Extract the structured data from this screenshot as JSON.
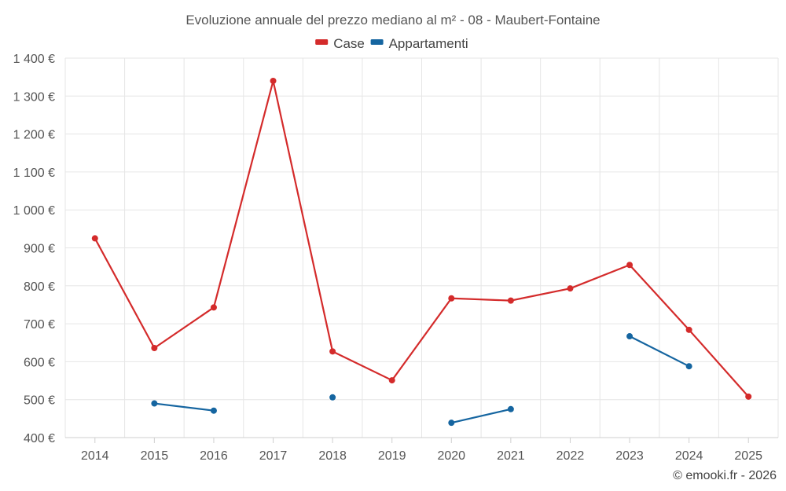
{
  "chart_data": {
    "type": "line",
    "title": "Evoluzione annuale del prezzo mediano al m² - 08 - Maubert-Fontaine",
    "categories": [
      "2014",
      "2015",
      "2016",
      "2017",
      "2018",
      "2019",
      "2020",
      "2021",
      "2022",
      "2023",
      "2024",
      "2025"
    ],
    "series": [
      {
        "name": "Case",
        "color": "#d42b2b",
        "values": [
          925,
          636,
          743,
          1340,
          627,
          551,
          767,
          761,
          793,
          855,
          684,
          508
        ]
      },
      {
        "name": "Appartamenti",
        "color": "#1565a0",
        "values": [
          null,
          490,
          471,
          null,
          506,
          null,
          439,
          475,
          null,
          667,
          588,
          null
        ]
      }
    ],
    "y_ticks": [
      400,
      500,
      600,
      700,
      800,
      900,
      1000,
      1100,
      1200,
      1300,
      1400
    ],
    "y_tick_labels": [
      "400 €",
      "500 €",
      "600 €",
      "700 €",
      "800 €",
      "900 €",
      "1 000 €",
      "1 100 €",
      "1 200 €",
      "1 300 €",
      "1 400 €"
    ],
    "ylim": [
      400,
      1400
    ],
    "xlabel": "",
    "ylabel": "",
    "legend_position": "top-center",
    "grid": true
  },
  "footer": {
    "credit": "© emooki.fr - 2026"
  }
}
